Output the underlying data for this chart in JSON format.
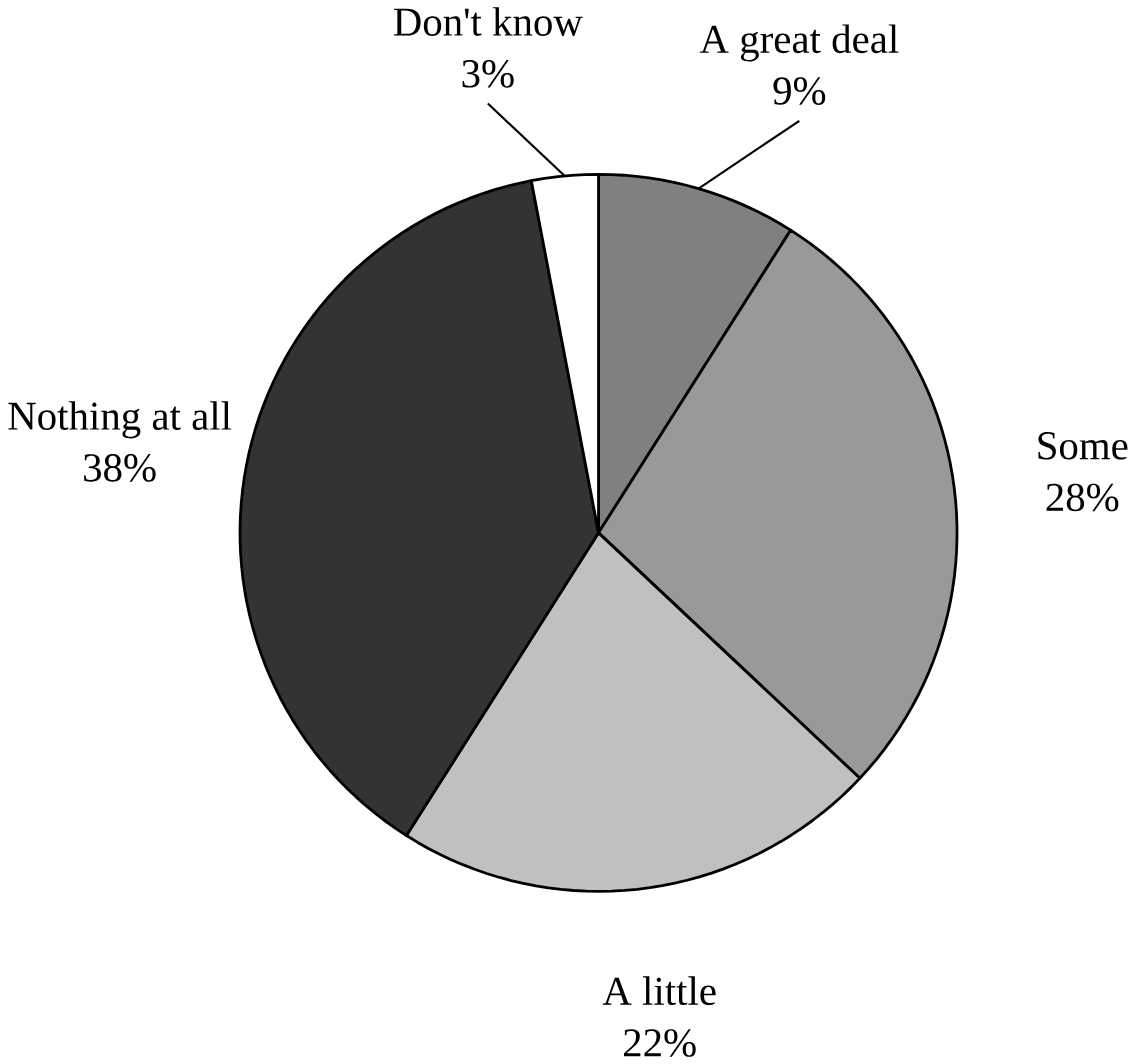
{
  "chart_data": {
    "type": "pie",
    "categories": [
      "A great deal",
      "Some",
      "A little",
      "Nothing at all",
      "Don't know"
    ],
    "values": [
      9,
      28,
      22,
      38,
      3
    ],
    "value_labels": [
      "9%",
      "28%",
      "22%",
      "38%",
      "3%"
    ],
    "colors": [
      "#808080",
      "#999999",
      "#c0c0c0",
      "#333333",
      "#ffffff"
    ]
  }
}
